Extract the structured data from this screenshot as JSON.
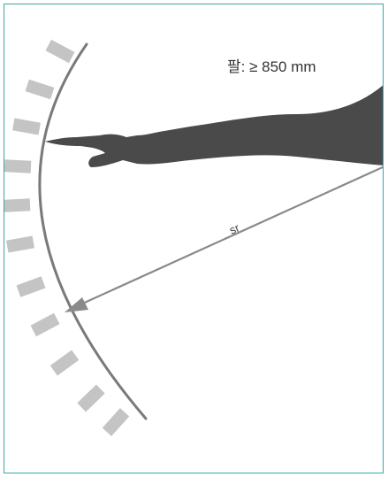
{
  "labels": {
    "arm_length": "팔: ≥ 850 mm",
    "radius": "sr"
  },
  "colors": {
    "frame": "#3aa6a6",
    "arm": "#4a4a4a",
    "hatch": "#c4c4c4",
    "arc": "#7a7a7a",
    "arrow": "#8a8a8a"
  },
  "icons": {
    "arrowhead": "arrowhead-icon"
  }
}
